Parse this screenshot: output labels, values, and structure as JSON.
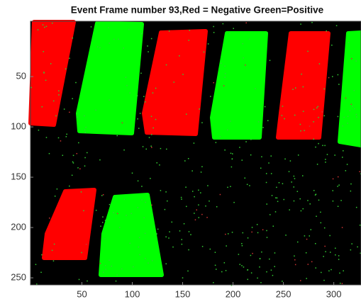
{
  "chart_data": {
    "type": "image",
    "title": "Event Frame number 93,Red = Negative Green=Positive",
    "xlim": [
      -1,
      327
    ],
    "ylim": [
      -5,
      257
    ],
    "xticks": [
      50,
      100,
      150,
      200,
      250,
      300
    ],
    "yticks": [
      50,
      100,
      150,
      200,
      250
    ],
    "y_reversed": true
  }
}
